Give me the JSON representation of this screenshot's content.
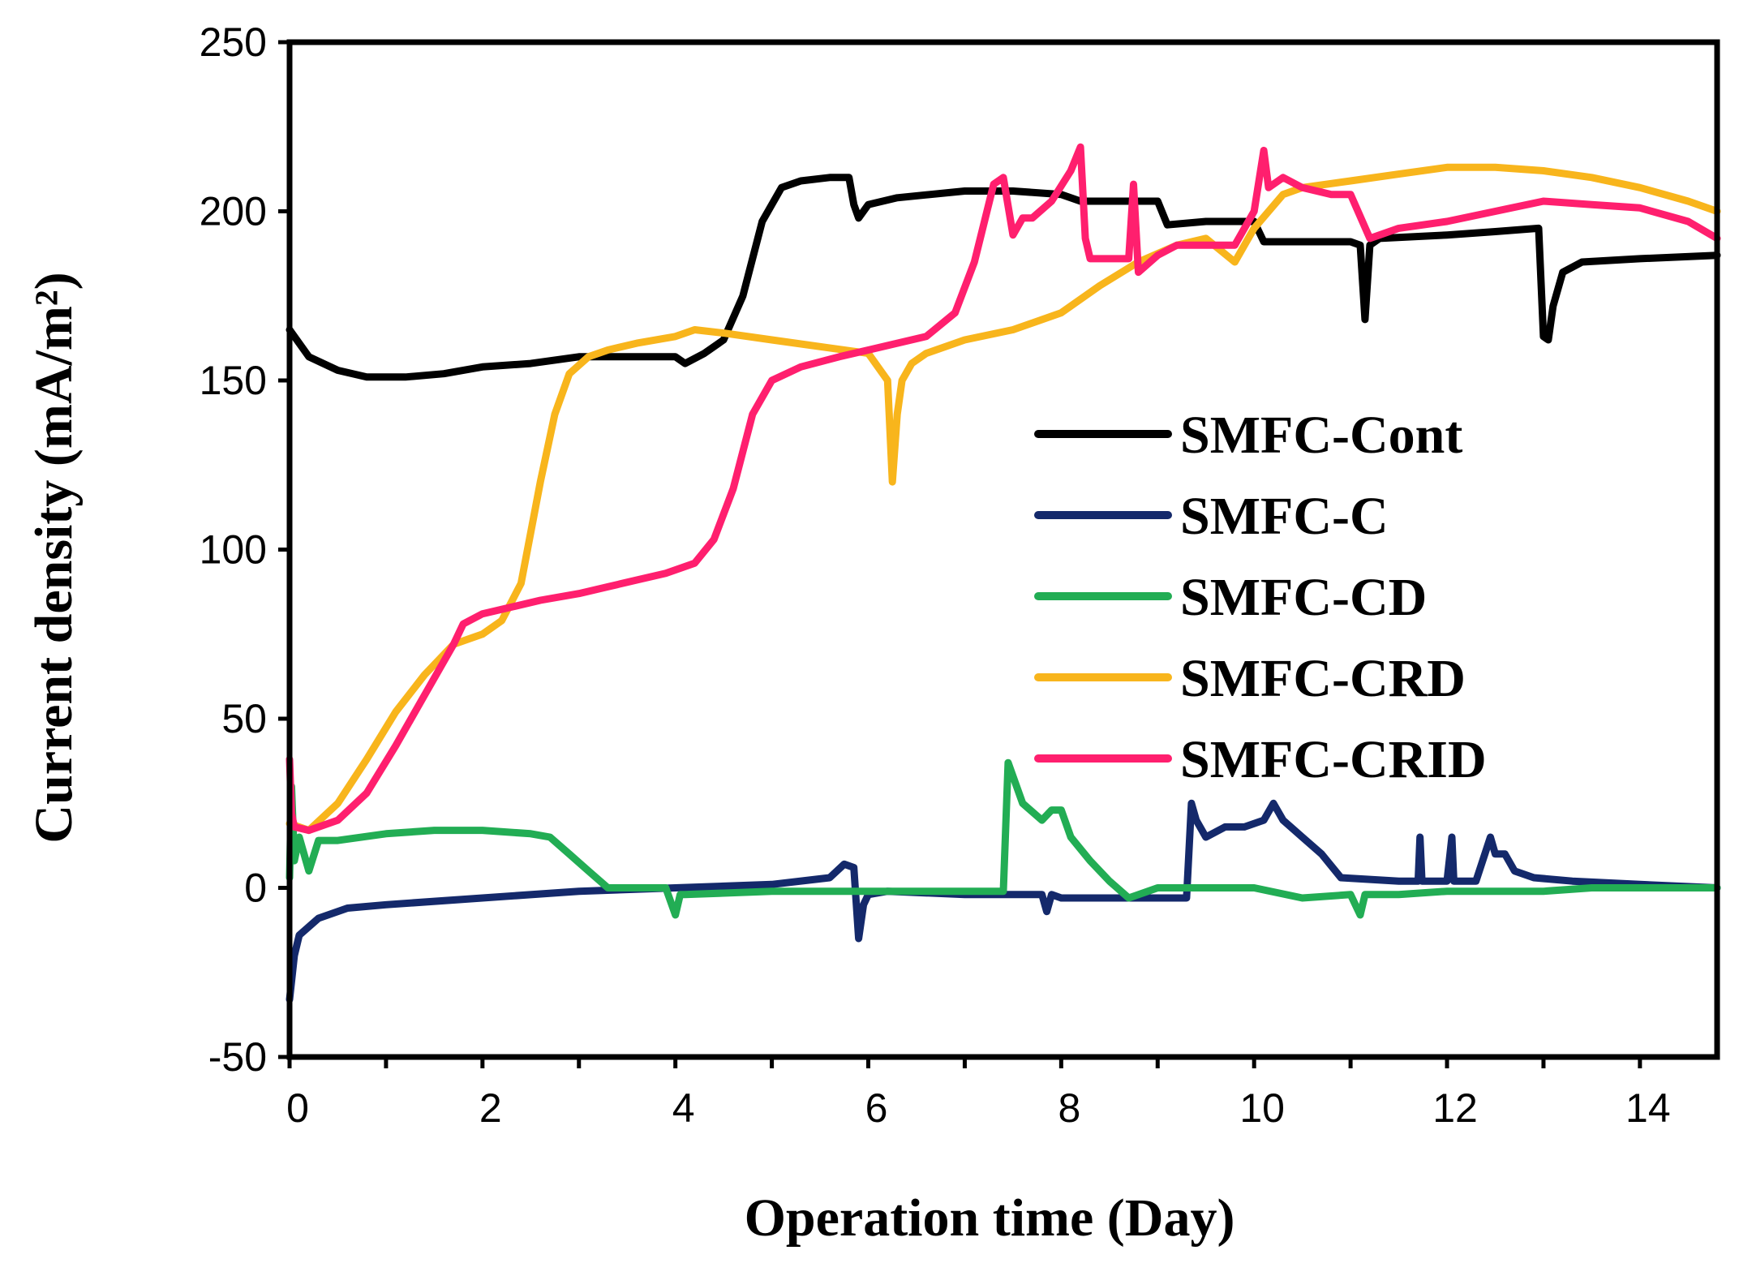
{
  "chart_data": {
    "type": "line",
    "title": "",
    "xlabel": "Operation time (Day)",
    "ylabel": "Current density (mA/m²)",
    "xlim": [
      0,
      14.8
    ],
    "ylim": [
      -50,
      250
    ],
    "x_ticks": [
      0,
      2,
      4,
      6,
      8,
      10,
      12,
      14
    ],
    "x_tick_labels": [
      "0",
      "2",
      "4",
      "6",
      "8",
      "10",
      "12",
      "14"
    ],
    "y_ticks": [
      -50,
      0,
      50,
      100,
      150,
      200,
      250
    ],
    "y_tick_labels": [
      "-50",
      "0",
      "50",
      "100",
      "150",
      "200",
      "250"
    ],
    "grid": false,
    "legend_position": "right",
    "series": [
      {
        "name": "SMFC-Cont",
        "color": "#000000",
        "x": [
          0,
          0.2,
          0.5,
          0.8,
          1.2,
          1.6,
          2.0,
          2.5,
          3.0,
          3.5,
          4.0,
          4.1,
          4.3,
          4.5,
          4.7,
          4.9,
          5.1,
          5.3,
          5.6,
          5.8,
          5.85,
          5.9,
          6.0,
          6.3,
          7.0,
          7.5,
          8.0,
          8.2,
          8.5,
          9.0,
          9.1,
          9.5,
          9.8,
          10.0,
          10.1,
          10.2,
          10.5,
          11.0,
          11.1,
          11.15,
          11.2,
          11.3,
          12.0,
          12.5,
          12.95,
          13.0,
          13.05,
          13.1,
          13.2,
          13.4,
          14.0,
          14.8
        ],
        "y": [
          165,
          157,
          153,
          151,
          151,
          152,
          154,
          155,
          157,
          157,
          157,
          155,
          158,
          162,
          175,
          197,
          207,
          209,
          210,
          210,
          202,
          198,
          202,
          204,
          206,
          206,
          205,
          203,
          203,
          203,
          196,
          197,
          197,
          197,
          191,
          191,
          191,
          191,
          190,
          168,
          190,
          192,
          193,
          194,
          195,
          163,
          162,
          172,
          182,
          185,
          186,
          187
        ]
      },
      {
        "name": "SMFC-C",
        "color": "#14296b",
        "x": [
          0,
          0.05,
          0.1,
          0.3,
          0.6,
          1.0,
          2.0,
          3.0,
          4.0,
          5.0,
          5.6,
          5.75,
          5.85,
          5.9,
          5.95,
          6.0,
          6.2,
          7.0,
          7.5,
          7.8,
          7.85,
          7.9,
          8.0,
          9.0,
          9.3,
          9.35,
          9.4,
          9.5,
          9.7,
          9.9,
          10.1,
          10.2,
          10.3,
          10.5,
          10.7,
          10.9,
          11.5,
          11.7,
          11.72,
          11.74,
          12.0,
          12.05,
          12.07,
          12.3,
          12.45,
          12.5,
          12.6,
          12.7,
          12.9,
          13.3,
          14.0,
          14.8
        ],
        "y": [
          -33,
          -20,
          -14,
          -9,
          -6,
          -5,
          -3,
          -1,
          0,
          1,
          3,
          7,
          6,
          -15,
          -5,
          -2,
          -1,
          -2,
          -2,
          -2,
          -7,
          -2,
          -3,
          -3,
          -3,
          25,
          20,
          15,
          18,
          18,
          20,
          25,
          20,
          15,
          10,
          3,
          2,
          2,
          15,
          2,
          2,
          15,
          2,
          2,
          15,
          10,
          10,
          5,
          3,
          2,
          1,
          0
        ]
      },
      {
        "name": "SMFC-CD",
        "color": "#22ad54",
        "x": [
          0,
          0.02,
          0.05,
          0.1,
          0.2,
          0.3,
          0.4,
          0.5,
          1.0,
          1.5,
          2.0,
          2.5,
          2.7,
          2.9,
          3.1,
          3.3,
          3.5,
          3.9,
          4.0,
          4.05,
          4.1,
          5.0,
          6.0,
          7.4,
          7.45,
          7.6,
          7.8,
          7.9,
          8.0,
          8.1,
          8.3,
          8.5,
          8.7,
          9.0,
          9.5,
          10.0,
          10.5,
          11.0,
          11.1,
          11.15,
          11.2,
          11.5,
          12.0,
          13.0,
          13.5,
          14.0,
          14.8
        ],
        "y": [
          3,
          30,
          8,
          15,
          5,
          14,
          14,
          14,
          16,
          17,
          17,
          16,
          15,
          10,
          5,
          0,
          0,
          0,
          -8,
          -2,
          -2,
          -1,
          -1,
          -1,
          37,
          25,
          20,
          23,
          23,
          15,
          8,
          2,
          -3,
          0,
          0,
          0,
          -3,
          -2,
          -8,
          -2,
          -2,
          -2,
          -1,
          -1,
          0,
          0,
          0
        ]
      },
      {
        "name": "SMFC-CRD",
        "color": "#f8b51c",
        "x": [
          0,
          0.2,
          0.5,
          0.8,
          1.1,
          1.4,
          1.7,
          2.0,
          2.2,
          2.4,
          2.6,
          2.75,
          2.9,
          3.1,
          3.3,
          3.6,
          4.0,
          4.2,
          4.5,
          5.0,
          5.5,
          6.0,
          6.2,
          6.25,
          6.3,
          6.35,
          6.45,
          6.6,
          7.0,
          7.5,
          8.0,
          8.4,
          8.8,
          9.2,
          9.5,
          9.8,
          10.0,
          10.3,
          10.5,
          11.0,
          11.5,
          12.0,
          12.5,
          13.0,
          13.5,
          14.0,
          14.5,
          14.8
        ],
        "y": [
          19,
          17,
          25,
          38,
          52,
          63,
          72,
          75,
          79,
          90,
          120,
          140,
          152,
          157,
          159,
          161,
          163,
          165,
          164,
          162,
          160,
          158,
          150,
          120,
          140,
          150,
          155,
          158,
          162,
          165,
          170,
          178,
          185,
          190,
          192,
          185,
          195,
          205,
          207,
          209,
          211,
          213,
          213,
          212,
          210,
          207,
          203,
          200
        ]
      },
      {
        "name": "SMFC-CRID",
        "color": "#ff1f6e",
        "x": [
          0,
          0.02,
          0.05,
          0.2,
          0.5,
          0.8,
          1.1,
          1.4,
          1.7,
          1.8,
          2.0,
          2.3,
          2.6,
          3.0,
          3.3,
          3.6,
          3.9,
          4.2,
          4.4,
          4.6,
          4.8,
          5.0,
          5.3,
          5.7,
          6.0,
          6.3,
          6.6,
          6.9,
          7.1,
          7.3,
          7.4,
          7.5,
          7.6,
          7.7,
          7.9,
          8.1,
          8.2,
          8.25,
          8.3,
          8.5,
          8.7,
          8.75,
          8.8,
          9.0,
          9.2,
          9.5,
          9.8,
          10.0,
          10.1,
          10.15,
          10.3,
          10.5,
          10.8,
          11.0,
          11.2,
          11.5,
          12.0,
          12.5,
          13.0,
          13.5,
          14.0,
          14.5,
          14.8
        ],
        "y": [
          38,
          22,
          18,
          17,
          20,
          28,
          42,
          57,
          72,
          78,
          81,
          83,
          85,
          87,
          89,
          91,
          93,
          96,
          103,
          118,
          140,
          150,
          154,
          157,
          159,
          161,
          163,
          170,
          185,
          208,
          210,
          193,
          198,
          198,
          203,
          212,
          219,
          192,
          186,
          186,
          186,
          208,
          182,
          187,
          190,
          190,
          190,
          200,
          218,
          207,
          210,
          207,
          205,
          205,
          192,
          195,
          197,
          200,
          203,
          202,
          201,
          197,
          192
        ]
      }
    ]
  }
}
